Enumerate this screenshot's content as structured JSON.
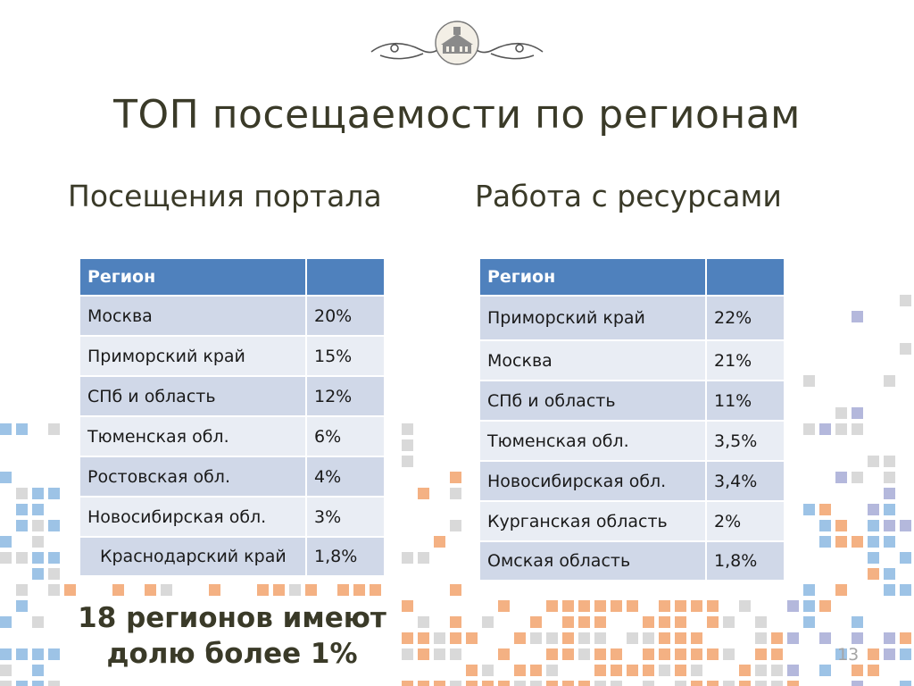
{
  "slide": {
    "title": "ТОП посещаемости по регионам",
    "subtitle_left": "Посещения портала",
    "subtitle_right": "Работа с ресурсами",
    "note_line1": "18 регионов имеют",
    "note_line2": "долю более 1%",
    "page_number": "13"
  },
  "colors": {
    "header": "#4f81bd",
    "row_odd": "#d0d8e8",
    "row_even": "#e9edf4",
    "deco_orange": "#f4b183",
    "deco_blue": "#9dc3e6"
  },
  "table_left": {
    "header": [
      "Регион",
      ""
    ],
    "rows": [
      [
        "Москва",
        "20%"
      ],
      [
        "Приморский край",
        "15%"
      ],
      [
        "СПб и область",
        "12%"
      ],
      [
        "Тюменская обл.",
        "6%"
      ],
      [
        "Ростовская обл.",
        "4%"
      ],
      [
        "Новосибирская обл.",
        "3%"
      ],
      [
        "Краснодарский край",
        "1,8%"
      ]
    ]
  },
  "table_right": {
    "header": [
      "Регион",
      ""
    ],
    "rows": [
      [
        "Приморский край",
        "22%"
      ],
      [
        "Москва",
        "21%"
      ],
      [
        "СПб и область",
        "11%"
      ],
      [
        "Тюменская обл.",
        "3,5%"
      ],
      [
        "Новосибирская обл.",
        "3,4%"
      ],
      [
        "Курганская область",
        "2%"
      ],
      [
        "Омская область",
        "1,8%"
      ]
    ]
  }
}
